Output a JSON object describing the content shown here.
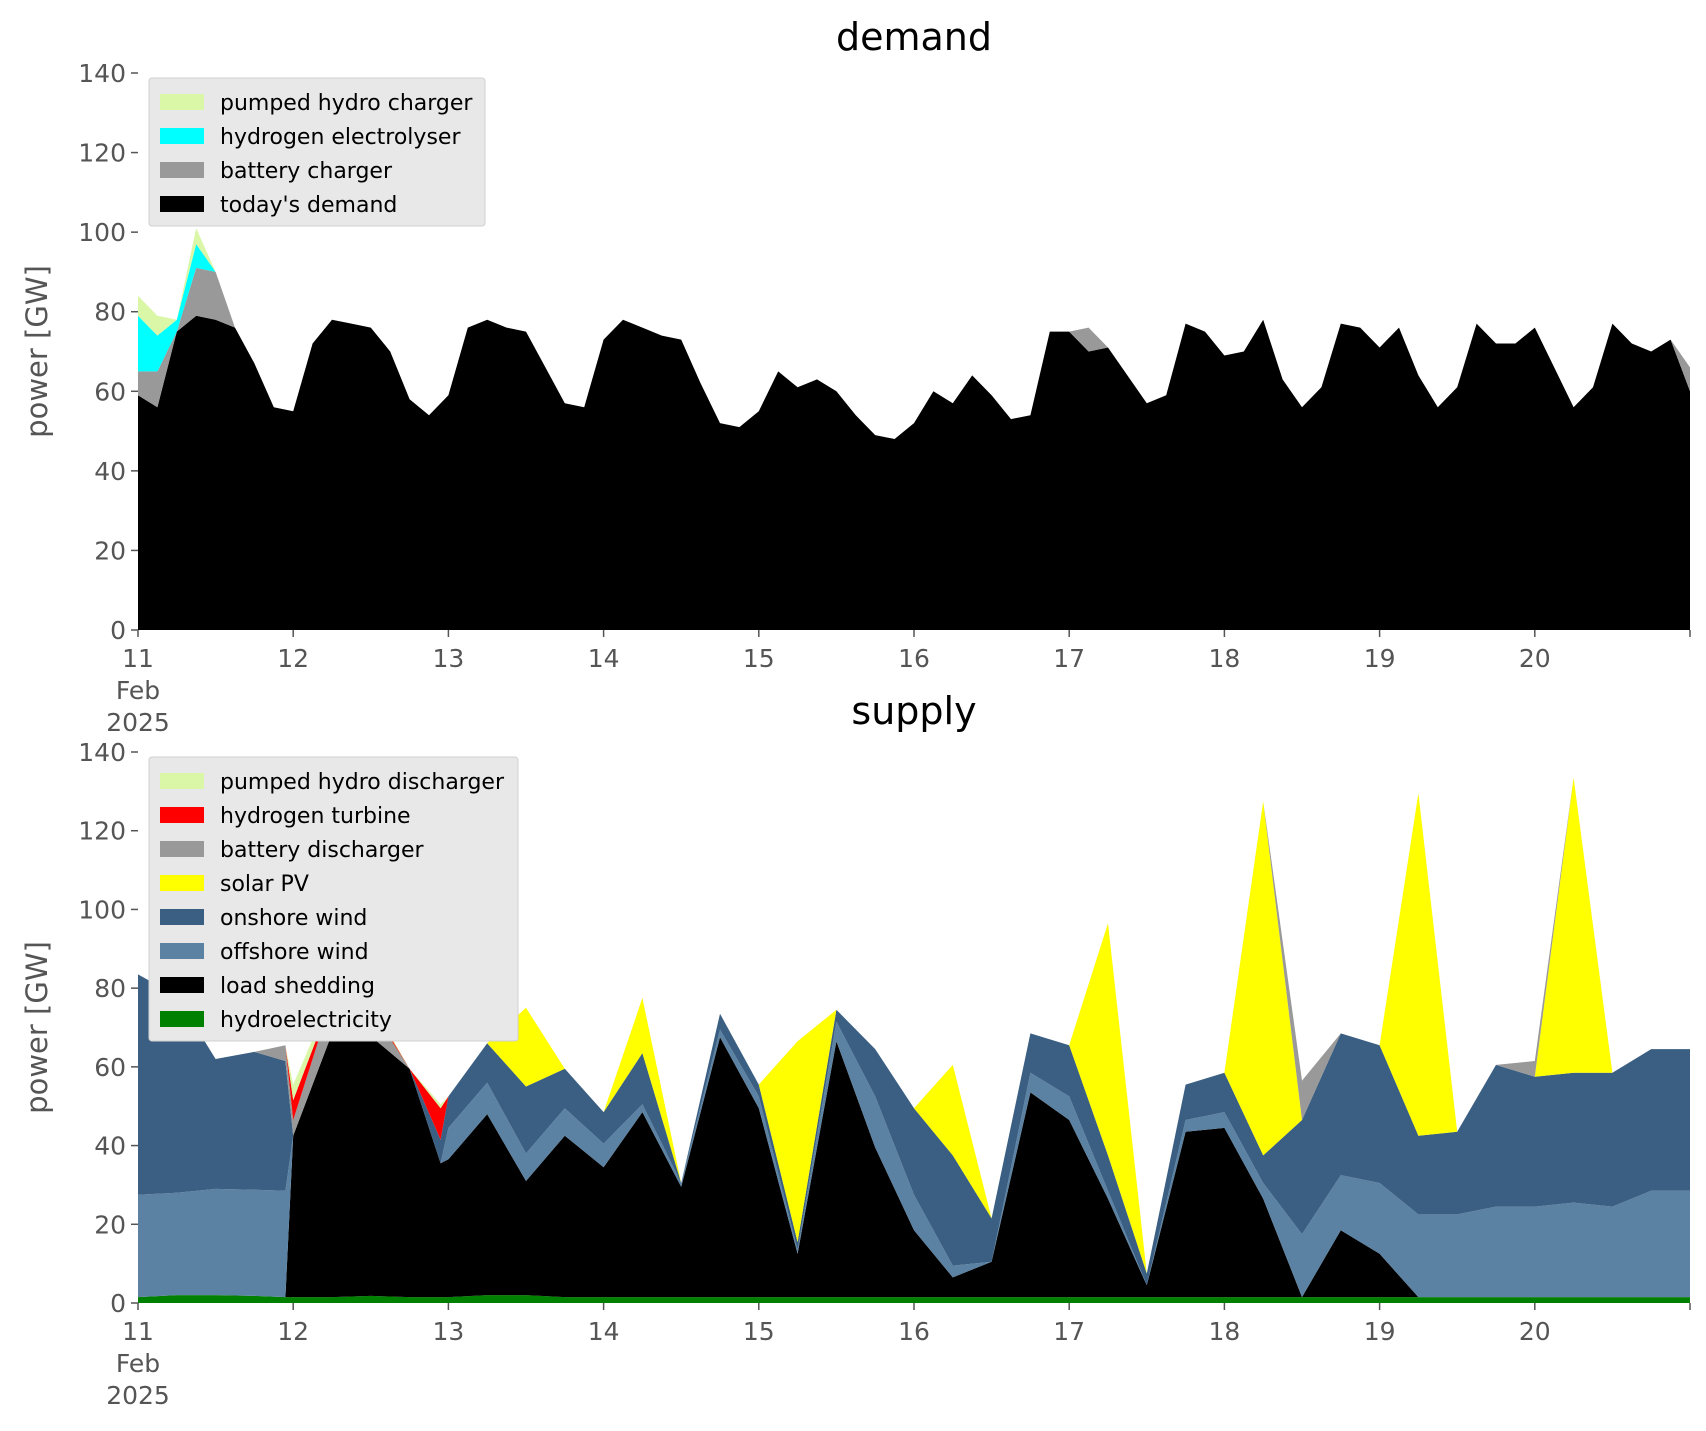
{
  "chart_data": [
    {
      "type": "area",
      "stacked": true,
      "title": "demand",
      "ylabel": "power [GW]",
      "xlabel": "",
      "ylim": [
        0,
        140
      ],
      "yticks": [
        "0",
        "20",
        "40",
        "60",
        "80",
        "100",
        "120",
        "140"
      ],
      "xlim": [
        0,
        10
      ],
      "xtick_labels": [
        "11",
        "12",
        "13",
        "14",
        "15",
        "16",
        "17",
        "18",
        "19",
        "20"
      ],
      "xtick_sublabels": [
        "Feb",
        "2025"
      ],
      "grid": false,
      "legend_position": "upper-left",
      "x_unit": "days since 11 Feb 2025",
      "x": [
        0,
        0.125,
        0.25,
        0.375,
        0.5,
        0.625,
        0.75,
        0.875,
        1,
        1.125,
        1.25,
        1.375,
        1.5,
        1.625,
        1.75,
        1.875,
        2,
        2.125,
        2.25,
        2.375,
        2.5,
        2.625,
        2.75,
        2.875,
        3,
        3.125,
        3.25,
        3.375,
        3.5,
        3.625,
        3.75,
        3.875,
        4,
        4.125,
        4.25,
        4.375,
        4.5,
        4.625,
        4.75,
        4.875,
        5,
        5.125,
        5.25,
        5.375,
        5.5,
        5.625,
        5.75,
        5.875,
        6,
        6.125,
        6.25,
        6.375,
        6.5,
        6.625,
        6.75,
        6.875,
        7,
        7.125,
        7.25,
        7.375,
        7.5,
        7.625,
        7.75,
        7.875,
        8,
        8.125,
        8.25,
        8.375,
        8.5,
        8.625,
        8.75,
        8.875,
        9,
        9.125,
        9.25,
        9.375,
        9.5,
        9.625,
        9.75,
        9.875,
        10
      ],
      "series": [
        {
          "name": "today's demand",
          "color": "#000000",
          "values": [
            59,
            56,
            75,
            79,
            78,
            76,
            67,
            56,
            55,
            72,
            78,
            77,
            76,
            70,
            58,
            54,
            59,
            76,
            78,
            76,
            75,
            66,
            57,
            56,
            73,
            78,
            76,
            74,
            73,
            62,
            52,
            51,
            55,
            65,
            61,
            63,
            60,
            54,
            49,
            48,
            52,
            60,
            57,
            64,
            59,
            53,
            54,
            75,
            75,
            70,
            71,
            64,
            57,
            59,
            77,
            75,
            69,
            70,
            78,
            63,
            56,
            61,
            77,
            76,
            71,
            76,
            64,
            56,
            61,
            77,
            72,
            72,
            76,
            66,
            56,
            61,
            77,
            72,
            70,
            73,
            60
          ]
        },
        {
          "name": "battery charger",
          "color": "#999999",
          "values": [
            6,
            9,
            0,
            12,
            12,
            0,
            0,
            0,
            0,
            0,
            0,
            0,
            0,
            0,
            0,
            0,
            0,
            0,
            0,
            0,
            0,
            0,
            0,
            0,
            0,
            0,
            0,
            0,
            0,
            0,
            0,
            0,
            0,
            0,
            0,
            0,
            0,
            0,
            0,
            0,
            0,
            0,
            0,
            0,
            0,
            0,
            0,
            0,
            0,
            6,
            0,
            0,
            0,
            0,
            0,
            0,
            0,
            0,
            0,
            0,
            0,
            0,
            0,
            0,
            0,
            0,
            0,
            0,
            0,
            0,
            0,
            0,
            0,
            0,
            0,
            0,
            0,
            0,
            0,
            0,
            6
          ]
        },
        {
          "name": "hydrogen electrolyser",
          "color": "#00ffff",
          "values": [
            14,
            9,
            3,
            6,
            0,
            0,
            0,
            0,
            0,
            0,
            0,
            0,
            0,
            0,
            0,
            0,
            0,
            0,
            0,
            0,
            0,
            0,
            0,
            0,
            0,
            0,
            0,
            0,
            0,
            0,
            0,
            0,
            0,
            0,
            0,
            0,
            0,
            0,
            0,
            0,
            0,
            0,
            0,
            0,
            0,
            0,
            0,
            0,
            0,
            0,
            0,
            0,
            0,
            0,
            0,
            0,
            0,
            0,
            0,
            0,
            0,
            0,
            0,
            0,
            0,
            0,
            0,
            0,
            0,
            0,
            0,
            0,
            0,
            0,
            0,
            0,
            0,
            0,
            0,
            0,
            0
          ]
        },
        {
          "name": "pumped hydro charger",
          "color": "#d9f7a6",
          "values": [
            5,
            5,
            0,
            4,
            0,
            0,
            0,
            0,
            0,
            0,
            0,
            0,
            0,
            0,
            0,
            0,
            0,
            0,
            0,
            0,
            0,
            0,
            0,
            0,
            0,
            0,
            0,
            0,
            0,
            0,
            0,
            0,
            0,
            0,
            0,
            0,
            0,
            0,
            0,
            0,
            0,
            0,
            0,
            0,
            0,
            0,
            0,
            0,
            0,
            0,
            0,
            0,
            0,
            0,
            0,
            0,
            0,
            0,
            0,
            0,
            0,
            0,
            0,
            0,
            0,
            0,
            0,
            0,
            0,
            0,
            0,
            0,
            0,
            0,
            0,
            0,
            0,
            0,
            0,
            0,
            0
          ]
        }
      ]
    },
    {
      "type": "area",
      "stacked": true,
      "title": "supply",
      "ylabel": "power [GW]",
      "xlabel": "",
      "ylim": [
        0,
        140
      ],
      "yticks": [
        "0",
        "20",
        "40",
        "60",
        "80",
        "100",
        "120",
        "140"
      ],
      "xlim": [
        0,
        10
      ],
      "xtick_labels": [
        "11",
        "12",
        "13",
        "14",
        "15",
        "16",
        "17",
        "18",
        "19",
        "20"
      ],
      "xtick_sublabels": [
        "Feb",
        "2025"
      ],
      "grid": false,
      "legend_position": "upper-left",
      "x_unit": "days since 11 Feb 2025",
      "x": [
        0,
        0.25,
        0.5,
        0.75,
        0.95,
        1,
        1.25,
        1.5,
        1.75,
        1.95,
        2,
        2.25,
        2.5,
        2.75,
        3,
        3.25,
        3.5,
        3.75,
        4,
        4.25,
        4.5,
        4.75,
        5,
        5.25,
        5.5,
        5.75,
        6,
        6.25,
        6.5,
        6.75,
        7,
        7.25,
        7.5,
        7.75,
        8,
        8.25,
        8.5,
        8.75,
        9,
        9.25,
        9.5,
        9.75,
        10
      ],
      "series": [
        {
          "name": "hydroelectricity",
          "color": "#008000",
          "values": [
            1.5,
            2,
            2,
            1.8,
            1.5,
            1.5,
            1.5,
            1.8,
            1.5,
            1.5,
            1.5,
            2,
            2,
            1.5,
            1.5,
            1.5,
            1.5,
            1.5,
            1.5,
            1.5,
            1.5,
            1.5,
            1.5,
            1.5,
            1.5,
            1.5,
            1.5,
            1.5,
            1.5,
            1.5,
            1.5,
            1.5,
            1.5,
            1.5,
            1.5,
            1.5,
            1.5,
            1.5,
            1.5,
            1.5,
            1.5,
            1.5,
            1.5
          ]
        },
        {
          "name": "load shedding",
          "color": "#000000",
          "values": [
            0,
            0,
            0,
            0,
            0,
            41,
            67,
            66,
            58,
            34,
            35,
            46,
            29,
            41,
            33,
            47,
            28,
            66,
            48,
            11,
            65,
            38,
            17,
            5,
            9,
            52,
            45,
            25,
            3,
            42,
            43,
            25,
            0,
            17,
            11,
            0,
            0,
            0,
            0,
            0,
            0,
            0,
            0
          ]
        },
        {
          "name": "offshore wind",
          "color": "#5b82a3",
          "values": [
            26,
            26,
            27,
            27,
            27,
            0,
            0,
            0,
            0,
            0,
            8,
            8,
            7,
            7,
            6,
            2,
            1,
            2,
            3,
            1,
            5,
            13,
            9,
            3,
            0,
            5,
            6,
            2,
            0,
            3,
            4,
            4,
            16,
            14,
            18,
            21,
            21,
            23,
            23,
            24,
            23,
            27,
            27
          ]
        },
        {
          "name": "onshore wind",
          "color": "#3b5f82",
          "values": [
            56,
            50,
            33,
            35,
            33,
            0,
            0,
            0,
            0,
            6,
            8,
            10,
            17,
            10,
            8,
            13,
            0,
            4,
            3,
            2,
            3,
            12,
            22,
            28,
            11,
            10,
            13,
            9,
            3,
            9,
            10,
            7,
            29,
            36,
            35,
            20,
            21,
            36,
            33,
            33,
            34,
            36,
            36
          ]
        },
        {
          "name": "solar PV",
          "color": "#ffff00",
          "values": [
            0,
            0,
            0,
            0,
            0,
            0,
            0,
            0,
            0,
            0,
            0,
            0,
            20,
            0,
            0,
            14,
            0,
            0,
            0,
            51,
            0,
            0,
            0,
            23,
            0,
            0,
            0,
            59,
            0,
            0,
            0,
            90,
            0,
            0,
            0,
            87,
            0,
            0,
            0,
            75,
            0,
            0,
            0
          ]
        },
        {
          "name": "battery discharger",
          "color": "#999999",
          "values": [
            0,
            0,
            0,
            0,
            4,
            4,
            9,
            7,
            0,
            0,
            0,
            0,
            0,
            0,
            0,
            0,
            0,
            0,
            0,
            0,
            0,
            0,
            0,
            0,
            0,
            0,
            0,
            0,
            0,
            0,
            0,
            0,
            10,
            0,
            0,
            0,
            0,
            0,
            4,
            0,
            0,
            0,
            0
          ]
        },
        {
          "name": "hydrogen turbine",
          "color": "#ff0000",
          "values": [
            0,
            0,
            0,
            0,
            0,
            5,
            0,
            1,
            0,
            8,
            0,
            0,
            0,
            0,
            0,
            0,
            0,
            0,
            0,
            0,
            0,
            0,
            0,
            0,
            0,
            0,
            0,
            0,
            0,
            0,
            0,
            0,
            0,
            0,
            0,
            0,
            0,
            0,
            0,
            0,
            0,
            0,
            0
          ]
        },
        {
          "name": "pumped hydro discharger",
          "color": "#d9f7a6",
          "values": [
            0,
            0,
            0,
            0,
            0,
            4,
            1,
            1,
            0,
            1,
            0,
            0,
            0,
            0,
            0,
            0,
            0,
            0,
            0,
            0,
            0,
            0,
            0,
            0,
            0,
            0,
            0,
            0,
            0,
            0,
            0,
            0,
            0,
            0,
            0,
            0,
            0,
            0,
            0,
            0,
            0,
            0,
            0
          ]
        }
      ]
    }
  ]
}
